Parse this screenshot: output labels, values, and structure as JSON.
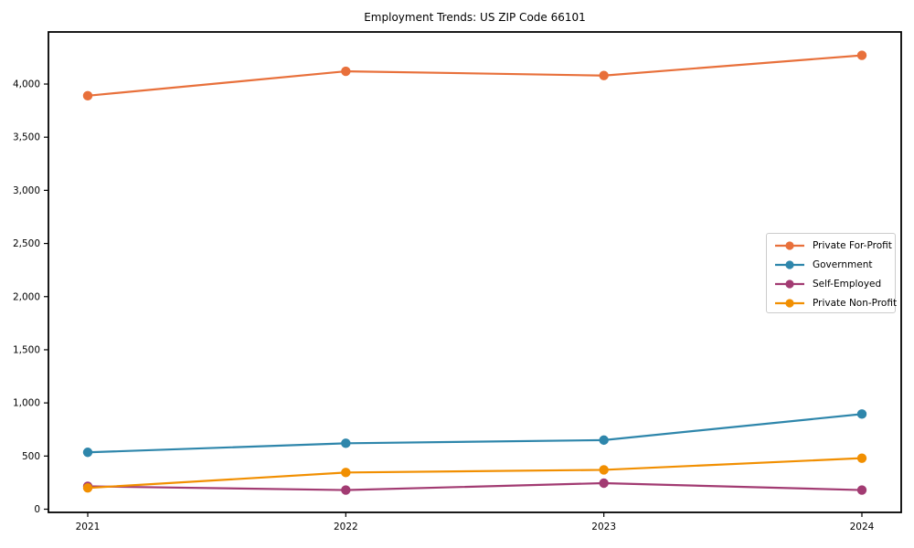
{
  "chart_data": {
    "type": "line",
    "title": "Employment Trends: US ZIP Code 66101",
    "xlabel": "",
    "ylabel": "",
    "x": [
      "2021",
      "2022",
      "2023",
      "2024"
    ],
    "series": [
      {
        "name": "Private For-Profit",
        "color": "#E8703B",
        "values": [
          3890,
          4120,
          4080,
          4270
        ]
      },
      {
        "name": "Government",
        "color": "#2E86AB",
        "values": [
          535,
          620,
          650,
          895
        ]
      },
      {
        "name": "Self-Employed",
        "color": "#A23B72",
        "values": [
          215,
          180,
          245,
          180
        ]
      },
      {
        "name": "Private Non-Profit",
        "color": "#F18F01",
        "values": [
          200,
          345,
          370,
          480
        ]
      }
    ],
    "yticks": [
      0,
      500,
      1000,
      1500,
      2000,
      2500,
      3000,
      3500,
      4000
    ],
    "ylim": [
      -30,
      4490
    ],
    "grid": false,
    "marker": "circle",
    "legend_position": "center-right",
    "frame_color": "#000000",
    "background_color": "#ffffff"
  }
}
